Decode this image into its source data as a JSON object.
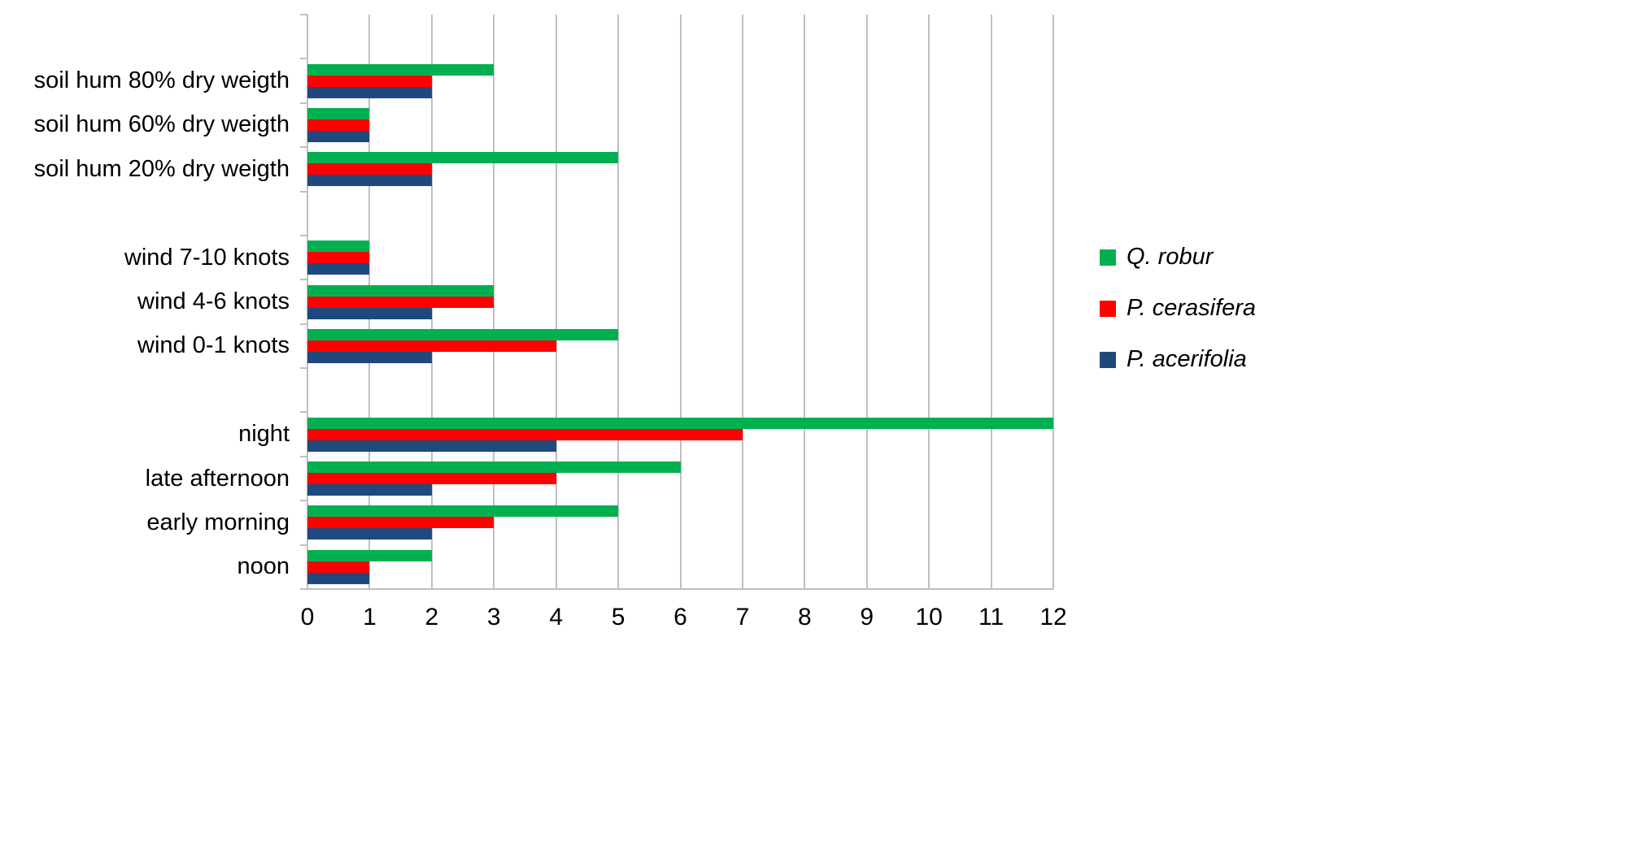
{
  "chart_data": {
    "type": "bar",
    "orientation": "horizontal",
    "title": "",
    "categories": [
      "soil hum 80% dry weigth",
      "soil hum 60% dry weigth",
      "soil hum 20% dry weigth",
      "",
      "wind 7-10 knots",
      "wind 4-6 knots",
      "wind 0-1 knots",
      "",
      "night",
      "late afternoon",
      "early morning",
      "noon"
    ],
    "series": [
      {
        "name": "Q. robur",
        "color": "#00B050",
        "values": [
          3,
          1,
          5,
          null,
          1,
          3,
          5,
          null,
          12,
          6,
          5,
          2
        ]
      },
      {
        "name": "P. cerasifera",
        "color": "#FF0000",
        "values": [
          2,
          1,
          2,
          null,
          1,
          3,
          4,
          null,
          7,
          4,
          3,
          1
        ]
      },
      {
        "name": "P. acerifolia",
        "color": "#1F497D",
        "values": [
          2,
          1,
          2,
          null,
          1,
          2,
          2,
          null,
          4,
          2,
          2,
          1
        ]
      }
    ],
    "xlim": [
      0,
      12
    ],
    "xticks": [
      0,
      1,
      2,
      3,
      4,
      5,
      6,
      7,
      8,
      9,
      10,
      11,
      12
    ],
    "grid": "vertical",
    "gridline_color": "#BFBFBF",
    "text_color": "#000000",
    "legend_position": "right",
    "legend_entries": [
      "Q. robur",
      "P. cerasifera",
      "P. acerifolia"
    ]
  }
}
